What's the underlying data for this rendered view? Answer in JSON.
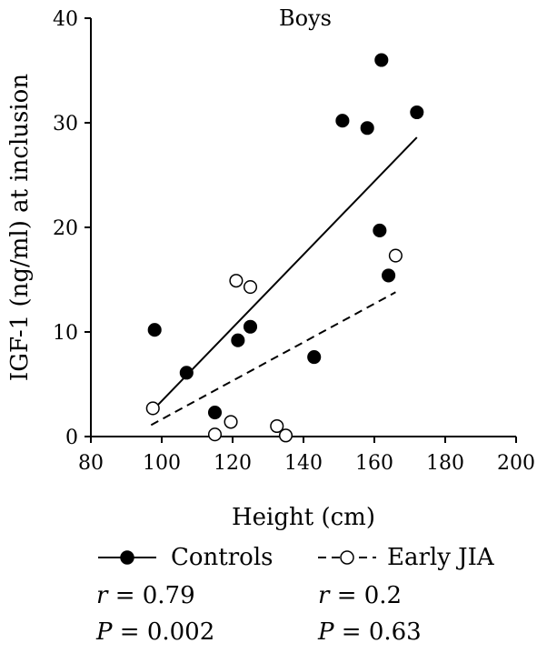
{
  "chart_data": {
    "type": "scatter",
    "title": "Boys",
    "xlabel": "Height (cm)",
    "ylabel": "IGF-1 (ng/ml) at inclusion",
    "xlim": [
      80,
      200
    ],
    "ylim": [
      0,
      40
    ],
    "xticks": [
      80,
      100,
      120,
      140,
      160,
      180,
      200
    ],
    "yticks": [
      0,
      10,
      20,
      30,
      40
    ],
    "grid": false,
    "legend_position": "bottom",
    "series": [
      {
        "name": "Controls",
        "marker": "filled-circle",
        "line_style": "solid",
        "points": [
          [
            98,
            10.2
          ],
          [
            107,
            6.1
          ],
          [
            115,
            2.3
          ],
          [
            121.5,
            9.2
          ],
          [
            125,
            10.5
          ],
          [
            143,
            7.6
          ],
          [
            151,
            30.2
          ],
          [
            158,
            29.5
          ],
          [
            162,
            36
          ],
          [
            172,
            31
          ],
          [
            161.5,
            19.7
          ],
          [
            164,
            15.4
          ]
        ],
        "fit_line": [
          [
            98,
            2.7
          ],
          [
            172,
            28.6
          ]
        ],
        "r_label": "r",
        "r_value": "= 0.79",
        "p_label": "P",
        "p_value": "= 0.002"
      },
      {
        "name": "Early JIA",
        "marker": "open-circle",
        "line_style": "dashed",
        "points": [
          [
            97.5,
            2.7
          ],
          [
            115,
            0.2
          ],
          [
            119.5,
            1.4
          ],
          [
            121,
            14.9
          ],
          [
            125,
            14.3
          ],
          [
            132.5,
            1.0
          ],
          [
            135,
            0.1
          ],
          [
            166,
            17.3
          ]
        ],
        "fit_line": [
          [
            97,
            1.1
          ],
          [
            166,
            13.8
          ]
        ],
        "r_label": "r",
        "r_value": "= 0.2",
        "p_label": "P",
        "p_value": "= 0.63"
      }
    ]
  },
  "colors": {
    "ink": "#000000",
    "open_fill": "#ffffff"
  }
}
